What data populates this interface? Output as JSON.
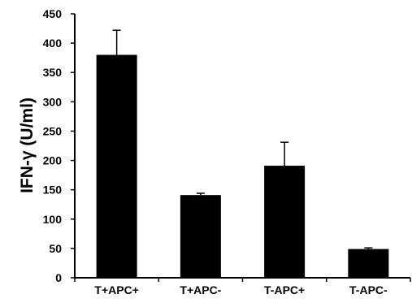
{
  "chart_data": {
    "type": "bar",
    "categories": [
      "T+APC+",
      "T+APC-",
      "T-APC+",
      "T-APC-"
    ],
    "values": [
      380,
      141,
      191,
      49
    ],
    "error_upper": [
      422,
      144,
      231,
      51
    ],
    "ylabel": "IFN-γ (U/ml)",
    "ylim": [
      0,
      450
    ],
    "yticks": [
      0,
      50,
      100,
      150,
      200,
      250,
      300,
      350,
      400,
      450
    ],
    "grid": false,
    "legend": "none",
    "bar_color": "#000000"
  }
}
